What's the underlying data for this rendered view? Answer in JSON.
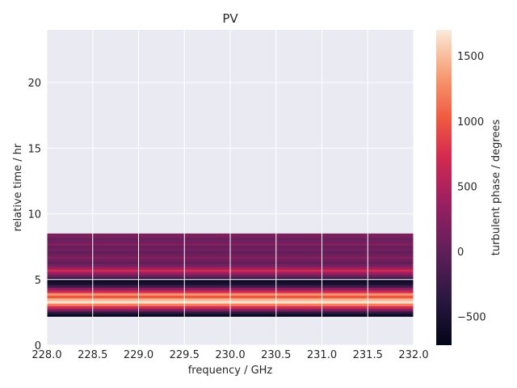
{
  "chart_data": {
    "type": "heatmap",
    "title": "PV",
    "xlabel": "frequency / GHz",
    "ylabel": "relative time / hr",
    "xlim": [
      228.0,
      232.0
    ],
    "ylim": [
      0,
      24
    ],
    "grid": true,
    "x_ticks": [
      "228.0",
      "228.5",
      "229.0",
      "229.5",
      "230.0",
      "230.5",
      "231.0",
      "231.5",
      "232.0"
    ],
    "y_ticks": [
      "0",
      "5",
      "10",
      "15",
      "20"
    ],
    "colorbar": {
      "label": "turbulent phase / degrees",
      "range": [
        -720,
        1700
      ],
      "ticks": [
        "−500",
        "0",
        "500",
        "1000",
        "1500"
      ],
      "colormap": "rocket"
    },
    "data_extent": {
      "x": [
        228.0,
        232.0
      ],
      "y": [
        2.2,
        8.5
      ]
    },
    "rows": [
      {
        "y0": 2.2,
        "y1": 2.4,
        "value": -650
      },
      {
        "y0": 2.4,
        "y1": 2.6,
        "value": -350
      },
      {
        "y0": 2.6,
        "y1": 2.8,
        "value": 200
      },
      {
        "y0": 2.8,
        "y1": 3.0,
        "value": 700
      },
      {
        "y0": 3.0,
        "y1": 3.2,
        "value": 1200
      },
      {
        "y0": 3.2,
        "y1": 3.4,
        "value": 1650
      },
      {
        "y0": 3.4,
        "y1": 3.6,
        "value": 1450
      },
      {
        "y0": 3.6,
        "y1": 3.8,
        "value": 1000
      },
      {
        "y0": 3.8,
        "y1": 4.0,
        "value": 1300
      },
      {
        "y0": 4.0,
        "y1": 4.2,
        "value": 700
      },
      {
        "y0": 4.2,
        "y1": 4.4,
        "value": 300
      },
      {
        "y0": 4.4,
        "y1": 4.6,
        "value": -200
      },
      {
        "y0": 4.6,
        "y1": 4.8,
        "value": -500
      },
      {
        "y0": 4.8,
        "y1": 5.0,
        "value": -600
      },
      {
        "y0": 5.0,
        "y1": 5.2,
        "value": -300
      },
      {
        "y0": 5.2,
        "y1": 5.4,
        "value": 100
      },
      {
        "y0": 5.4,
        "y1": 5.6,
        "value": 350
      },
      {
        "y0": 5.6,
        "y1": 5.8,
        "value": 700
      },
      {
        "y0": 5.8,
        "y1": 6.0,
        "value": 350
      },
      {
        "y0": 6.0,
        "y1": 6.2,
        "value": 150
      },
      {
        "y0": 6.2,
        "y1": 6.4,
        "value": 0
      },
      {
        "y0": 6.4,
        "y1": 6.6,
        "value": 100
      },
      {
        "y0": 6.6,
        "y1": 6.8,
        "value": 200
      },
      {
        "y0": 6.8,
        "y1": 7.0,
        "value": 100
      },
      {
        "y0": 7.0,
        "y1": 7.2,
        "value": 0
      },
      {
        "y0": 7.2,
        "y1": 7.4,
        "value": 120
      },
      {
        "y0": 7.4,
        "y1": 7.6,
        "value": 50
      },
      {
        "y0": 7.6,
        "y1": 7.8,
        "value": 200
      },
      {
        "y0": 7.8,
        "y1": 8.0,
        "value": 100
      },
      {
        "y0": 8.0,
        "y1": 8.2,
        "value": 50
      },
      {
        "y0": 8.2,
        "y1": 8.5,
        "value": 180
      }
    ]
  }
}
